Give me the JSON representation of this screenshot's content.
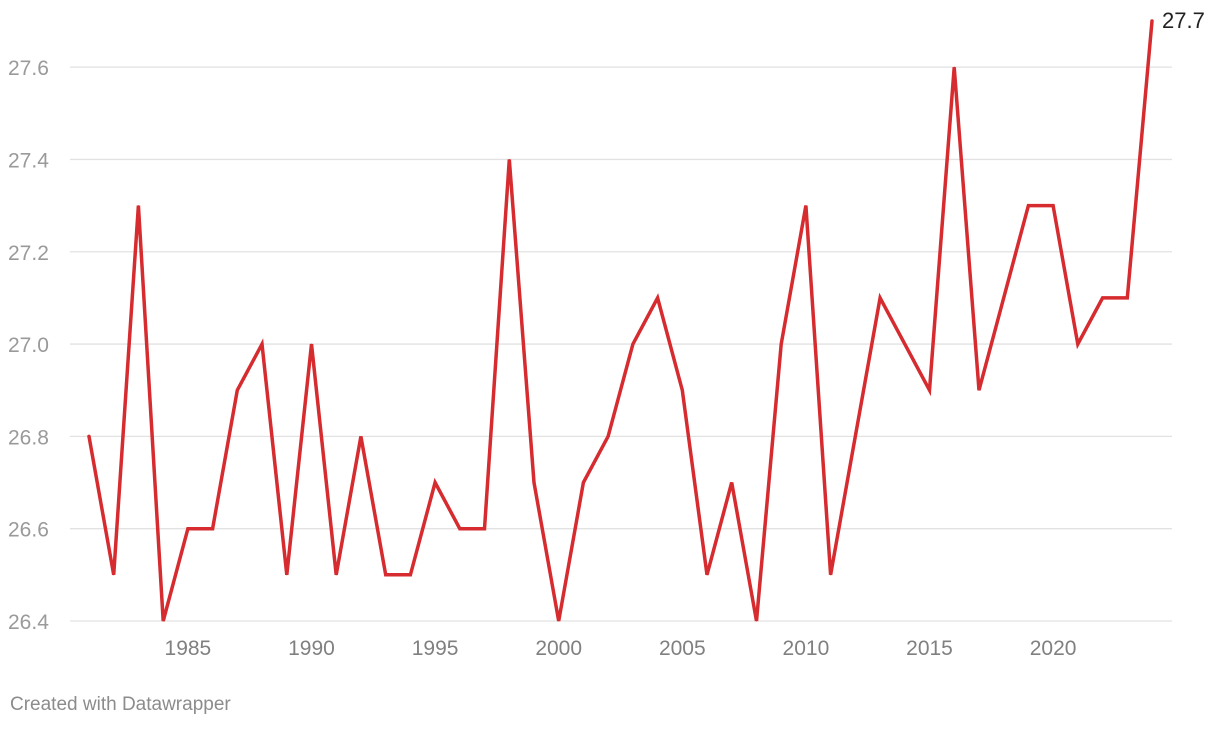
{
  "chart_data": {
    "type": "line",
    "x": [
      1981,
      1982,
      1983,
      1984,
      1985,
      1986,
      1987,
      1988,
      1989,
      1990,
      1991,
      1992,
      1993,
      1994,
      1995,
      1996,
      1997,
      1998,
      1999,
      2000,
      2001,
      2002,
      2003,
      2004,
      2005,
      2006,
      2007,
      2008,
      2009,
      2010,
      2011,
      2012,
      2013,
      2014,
      2015,
      2016,
      2017,
      2018,
      2019,
      2020,
      2021,
      2022,
      2023,
      2024
    ],
    "series": [
      {
        "values": [
          26.8,
          26.5,
          27.3,
          26.4,
          26.6,
          26.6,
          26.9,
          27.0,
          26.5,
          27.0,
          26.5,
          26.8,
          26.5,
          26.5,
          26.7,
          26.6,
          26.6,
          27.4,
          26.7,
          26.4,
          26.7,
          26.8,
          27.0,
          27.1,
          26.9,
          26.5,
          26.7,
          26.4,
          27.0,
          27.3,
          26.5,
          26.8,
          27.1,
          27.0,
          26.9,
          27.6,
          26.9,
          27.1,
          27.3,
          27.3,
          27.0,
          27.1,
          27.1,
          27.7
        ],
        "color": "#d62b2f"
      }
    ],
    "ylim": [
      26.4,
      27.7
    ],
    "xlim": [
      1981,
      2024
    ],
    "yticks": [
      "26.4",
      "26.6",
      "26.8",
      "27.0",
      "27.2",
      "27.4",
      "27.6"
    ],
    "yticks_values": [
      26.4,
      26.6,
      26.8,
      27.0,
      27.2,
      27.4,
      27.6
    ],
    "xticks": [
      "1985",
      "1990",
      "1995",
      "2000",
      "2005",
      "2010",
      "2015",
      "2020"
    ],
    "xticks_values": [
      1985,
      1990,
      1995,
      2000,
      2005,
      2010,
      2015,
      2020
    ],
    "end_label": "27.7",
    "grid": true,
    "title": "",
    "xlabel": "",
    "ylabel": ""
  },
  "credit": "Created with Datawrapper"
}
